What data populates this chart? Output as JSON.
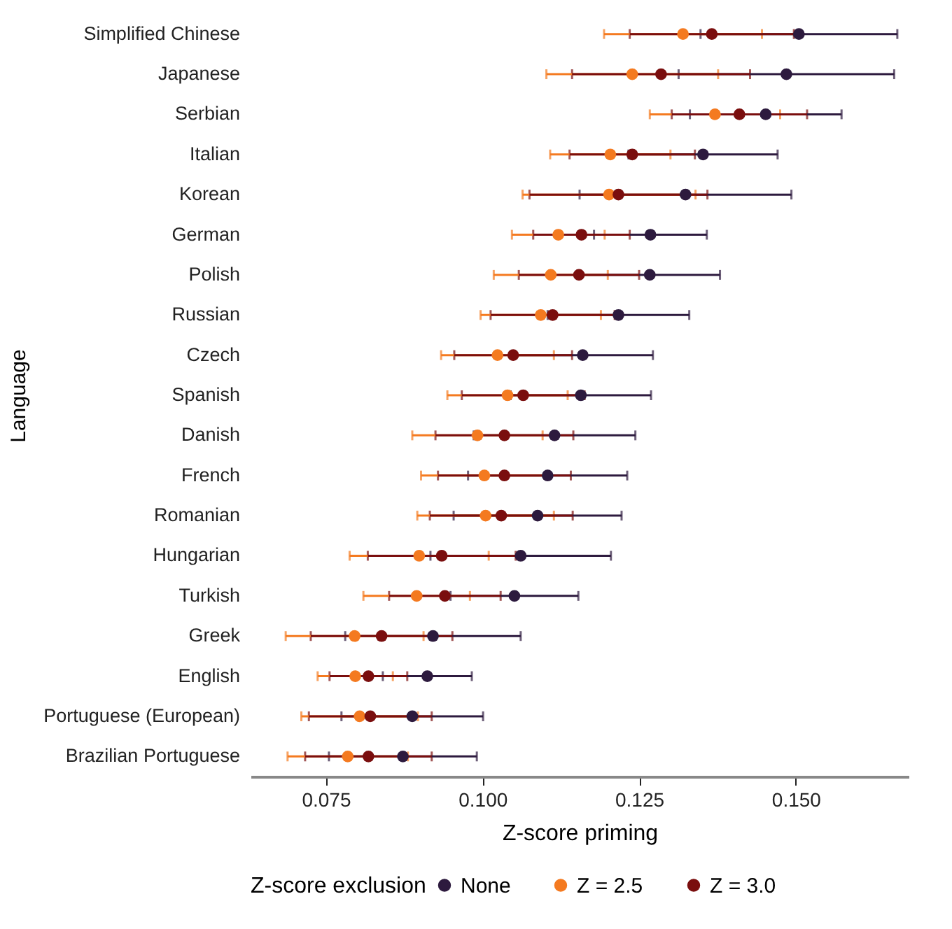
{
  "chart_data": {
    "type": "scatter",
    "xlabel": "Z-score priming",
    "ylabel": "Language",
    "legend_title": "Z-score exclusion",
    "legend": "bottom",
    "marker": "circle",
    "grid": false,
    "orientation": "horizontal",
    "categories": [
      "Simplified Chinese",
      "Japanese",
      "Serbian",
      "Italian",
      "Korean",
      "German",
      "Polish",
      "Russian",
      "Czech",
      "Spanish",
      "Danish",
      "French",
      "Romanian",
      "Hungarian",
      "Turkish",
      "Greek",
      "English",
      "Portuguese (European)",
      "Brazilian Portuguese"
    ],
    "xlim": [
      0.063,
      0.168
    ],
    "xticks": [
      0.075,
      {
        "value": 0.1,
        "label": "0.100"
      },
      0.125,
      {
        "value": 0.15,
        "label": "0.150"
      }
    ],
    "series": [
      {
        "name": "None",
        "color": "#2d1a3e",
        "values": [
          0.1505,
          0.1485,
          0.1452,
          0.1352,
          0.1324,
          0.1268,
          0.1267,
          0.1217,
          0.116,
          0.1157,
          0.1115,
          0.1104,
          0.1088,
          0.1061,
          0.1051,
          0.0921,
          0.0912,
          0.0888,
          0.0873
        ],
        "errors": [
          0.0157,
          0.0172,
          0.0121,
          0.0119,
          0.0169,
          0.009,
          0.0112,
          0.0113,
          0.0112,
          0.0112,
          0.0129,
          0.0127,
          0.0134,
          0.0144,
          0.0102,
          0.014,
          0.0071,
          0.0113,
          0.0118
        ]
      },
      {
        "name": "Z = 2.5",
        "color": "#f47a20",
        "values": [
          0.132,
          0.1239,
          0.1371,
          0.1204,
          0.1202,
          0.1121,
          0.1109,
          0.1093,
          0.1024,
          0.104,
          0.0992,
          0.1003,
          0.1005,
          0.0899,
          0.0895,
          0.0796,
          0.0797,
          0.0804,
          0.0785
        ],
        "errors": [
          0.0126,
          0.0137,
          0.0104,
          0.0096,
          0.0138,
          0.0074,
          0.0091,
          0.0096,
          0.009,
          0.0096,
          0.0104,
          0.0101,
          0.0109,
          0.0111,
          0.0085,
          0.011,
          0.006,
          0.0093,
          0.0096
        ]
      },
      {
        "name": "Z = 3.0",
        "color": "#7a0e0e",
        "values": [
          0.1366,
          0.1285,
          0.141,
          0.1239,
          0.1217,
          0.1158,
          0.1154,
          0.1112,
          0.1049,
          0.1065,
          0.1035,
          0.1035,
          0.103,
          0.0935,
          0.094,
          0.0839,
          0.0818,
          0.0821,
          0.0818
        ],
        "errors": [
          0.0131,
          0.0142,
          0.0108,
          0.01,
          0.0142,
          0.0077,
          0.0096,
          0.0099,
          0.0094,
          0.0098,
          0.011,
          0.0106,
          0.0114,
          0.0118,
          0.0089,
          0.0113,
          0.0062,
          0.0098,
          0.0101
        ]
      }
    ]
  }
}
